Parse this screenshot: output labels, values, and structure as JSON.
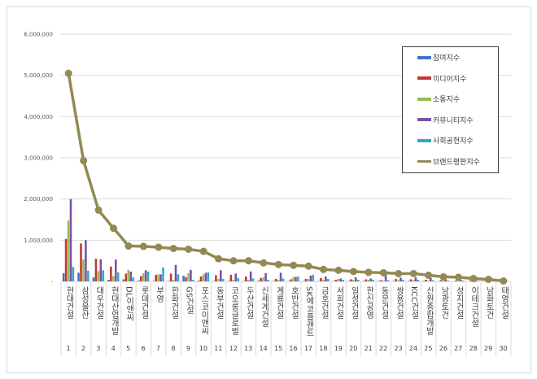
{
  "chart_data": {
    "type": "bar+line",
    "categories": [
      "현대건설",
      "삼성물산",
      "대우건설",
      "현대산업개발",
      "DL이앤씨",
      "롯데건설",
      "부영",
      "한화건설",
      "GS건설",
      "포스코이앤씨",
      "동부건설",
      "코오롱글로벌",
      "두산건설",
      "신세계건설",
      "계룡건설",
      "호반건설",
      "SK에코플랜트",
      "금호건설",
      "서희건설",
      "일성건설",
      "한신공영",
      "동문건설",
      "쌍용건설",
      "KCC건설",
      "신원종합개발",
      "남광토건",
      "성지건설",
      "이테크건설",
      "남화토건",
      "태영건설"
    ],
    "ranks": [
      "1",
      "2",
      "3",
      "4",
      "5",
      "6",
      "7",
      "8",
      "9",
      "10",
      "11",
      "12",
      "13",
      "14",
      "15",
      "16",
      "17",
      "18",
      "19",
      "20",
      "21",
      "22",
      "23",
      "24",
      "25",
      "26",
      "27",
      "28",
      "29",
      "30"
    ],
    "ylim": [
      0,
      6000000
    ],
    "yticks": [
      "-",
      "1,000,000",
      "2,000,000",
      "3,000,000",
      "4,000,000",
      "5,000,000",
      "6,000,000"
    ],
    "ytick_values": [
      0,
      1000000,
      2000000,
      3000000,
      4000000,
      5000000,
      6000000
    ],
    "grid": true,
    "legend_position": "top-right",
    "series": [
      {
        "name": "참여지수",
        "kind": "bar",
        "color": "#4472c4",
        "values": [
          200000,
          210000,
          100000,
          40000,
          50000,
          20000,
          10000,
          10000,
          140000,
          20000,
          10000,
          10000,
          10000,
          20000,
          10000,
          10000,
          10000,
          10000,
          10000,
          10000,
          10000,
          10000,
          10000,
          10000,
          10000,
          5000,
          5000,
          5000,
          5000,
          5000
        ]
      },
      {
        "name": "미디어지수",
        "kind": "bar",
        "color": "#c0392b",
        "values": [
          1030000,
          920000,
          550000,
          360000,
          190000,
          130000,
          160000,
          190000,
          100000,
          120000,
          150000,
          160000,
          120000,
          80000,
          60000,
          50000,
          60000,
          80000,
          40000,
          50000,
          50000,
          30000,
          60000,
          50000,
          40000,
          30000,
          20000,
          20000,
          10000,
          10000
        ]
      },
      {
        "name": "소통지수",
        "kind": "bar",
        "color": "#9bbb59",
        "values": [
          1480000,
          530000,
          250000,
          130000,
          280000,
          200000,
          170000,
          40000,
          200000,
          170000,
          60000,
          40000,
          40000,
          100000,
          40000,
          100000,
          60000,
          40000,
          60000,
          40000,
          40000,
          20000,
          30000,
          30000,
          20000,
          20000,
          10000,
          10000,
          10000,
          5000
        ]
      },
      {
        "name": "커뮤니티지수",
        "kind": "bar",
        "color": "#7b4fa8",
        "values": [
          2000000,
          1000000,
          540000,
          530000,
          240000,
          270000,
          170000,
          400000,
          280000,
          210000,
          270000,
          190000,
          240000,
          200000,
          210000,
          110000,
          140000,
          120000,
          70000,
          100000,
          70000,
          200000,
          90000,
          100000,
          80000,
          50000,
          40000,
          30000,
          20000,
          10000
        ]
      },
      {
        "name": "사회공헌지수",
        "kind": "bar",
        "color": "#31a9c9",
        "values": [
          350000,
          260000,
          270000,
          220000,
          100000,
          240000,
          340000,
          170000,
          40000,
          220000,
          60000,
          80000,
          70000,
          40000,
          70000,
          120000,
          160000,
          60000,
          40000,
          40000,
          40000,
          30000,
          40000,
          40000,
          30000,
          20000,
          20000,
          10000,
          10000,
          5000
        ]
      },
      {
        "name": "브랜드평판지수",
        "kind": "line",
        "color": "#938953",
        "values": [
          5050000,
          2930000,
          1730000,
          1290000,
          860000,
          850000,
          830000,
          800000,
          780000,
          730000,
          550000,
          500000,
          500000,
          450000,
          410000,
          390000,
          370000,
          290000,
          270000,
          240000,
          220000,
          210000,
          190000,
          190000,
          150000,
          110000,
          100000,
          70000,
          50000,
          10000
        ]
      }
    ]
  }
}
